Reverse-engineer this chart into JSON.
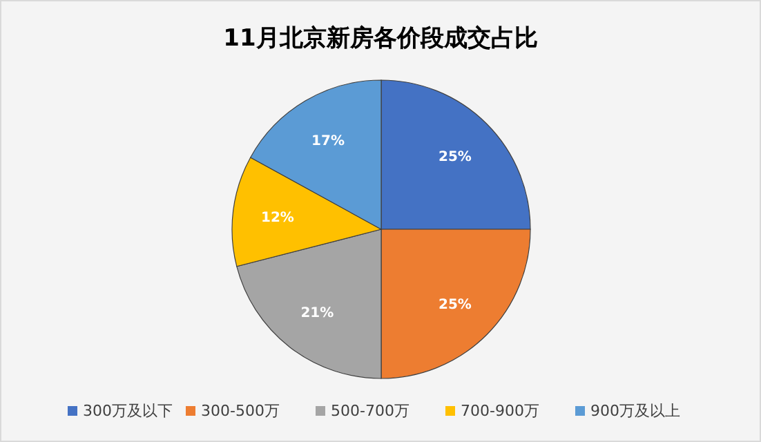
{
  "chart_data": {
    "type": "pie",
    "title": "11月北京新房各价段成交占比",
    "categories": [
      "300万及以下",
      "300-500万",
      "500-700万",
      "700-900万",
      "900万及以上"
    ],
    "values": [
      25,
      25,
      21,
      12,
      17
    ],
    "value_labels": [
      "25%",
      "25%",
      "21%",
      "12%",
      "17%"
    ],
    "colors": [
      "#4472c4",
      "#ed7d31",
      "#a5a5a5",
      "#ffc000",
      "#5b9bd5"
    ],
    "legend": "bottom"
  }
}
